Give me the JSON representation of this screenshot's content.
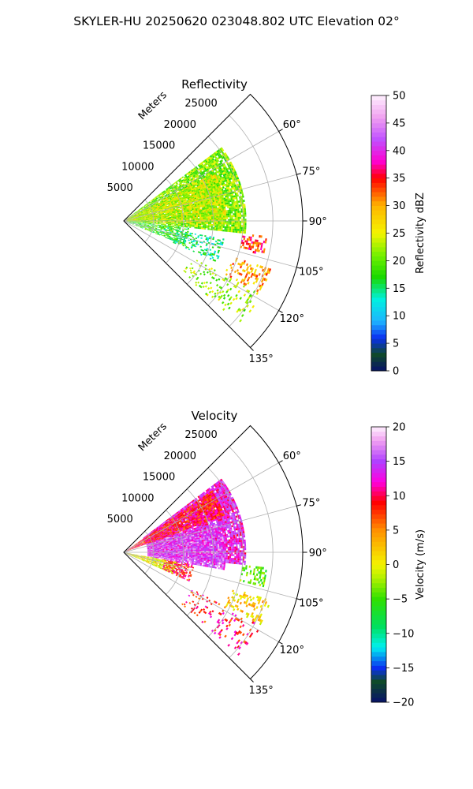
{
  "figure": {
    "suptitle": "SKYLER-HU  20250620  023048.802 UTC Elevation 02°"
  },
  "chart_data": [
    {
      "type": "heatmap",
      "projection": "polar-sector",
      "title": "Reflectivity",
      "range_label": "Meters",
      "range_ticks": [
        5000,
        10000,
        15000,
        20000,
        25000
      ],
      "range_max": 30000,
      "azimuth_range_deg": [
        45,
        135
      ],
      "azimuth_ticks": [
        60,
        75,
        90,
        105,
        120,
        135
      ],
      "azimuth_tick_labels": [
        "60°",
        "75°",
        "90°",
        "105°",
        "120°",
        "135°"
      ],
      "grid": true,
      "colorbar": {
        "label": "Reflectivity dBZ",
        "min": 0,
        "max": 50,
        "ticks": [
          0,
          5,
          10,
          15,
          20,
          25,
          30,
          35,
          40,
          45,
          50
        ],
        "tick_labels": [
          "0",
          "5",
          "10",
          "15",
          "20",
          "25",
          "30",
          "35",
          "40",
          "45",
          "50"
        ],
        "stops": [
          {
            "v": 0,
            "c": "#08126a"
          },
          {
            "v": 3,
            "c": "#0f4a2a"
          },
          {
            "v": 6,
            "c": "#0a2ff0"
          },
          {
            "v": 9,
            "c": "#1eb4ff"
          },
          {
            "v": 13,
            "c": "#00f0e0"
          },
          {
            "v": 17,
            "c": "#18d800"
          },
          {
            "v": 21,
            "c": "#74f000"
          },
          {
            "v": 25,
            "c": "#f4f400"
          },
          {
            "v": 30,
            "c": "#ffb400"
          },
          {
            "v": 35,
            "c": "#ff0000"
          },
          {
            "v": 38,
            "c": "#ff00d0"
          },
          {
            "v": 42,
            "c": "#c050ff"
          },
          {
            "v": 46,
            "c": "#f0a0f0"
          },
          {
            "v": 50,
            "c": "#fff0ff"
          }
        ]
      },
      "echo_regions": [
        {
          "az": [
            53,
            96
          ],
          "range": [
            0,
            20500
          ],
          "value": 21,
          "density": 0.88
        },
        {
          "az": [
            62,
            92
          ],
          "range": [
            0,
            17000
          ],
          "value": 24,
          "density": 0.75
        },
        {
          "az": [
            96,
            112
          ],
          "range": [
            0,
            11000
          ],
          "value": 18,
          "density": 0.65
        },
        {
          "az": [
            100,
            114
          ],
          "range": [
            9000,
            17000
          ],
          "value": 15,
          "density": 0.35
        },
        {
          "az": [
            96,
            104
          ],
          "range": [
            20000,
            24000
          ],
          "value": 34,
          "density": 0.45
        },
        {
          "az": [
            108,
            118
          ],
          "range": [
            19000,
            26000
          ],
          "value": 30,
          "density": 0.3
        },
        {
          "az": [
            118,
            132
          ],
          "range": [
            13000,
            26000
          ],
          "value": 22,
          "density": 0.18
        }
      ]
    },
    {
      "type": "heatmap",
      "projection": "polar-sector",
      "title": "Velocity",
      "range_label": "Meters",
      "range_ticks": [
        5000,
        10000,
        15000,
        20000,
        25000
      ],
      "range_max": 30000,
      "azimuth_range_deg": [
        45,
        135
      ],
      "azimuth_ticks": [
        60,
        75,
        90,
        105,
        120,
        135
      ],
      "azimuth_tick_labels": [
        "60°",
        "75°",
        "90°",
        "105°",
        "120°",
        "135°"
      ],
      "grid": true,
      "colorbar": {
        "label": "Velocity (m/s)",
        "min": -20,
        "max": 20,
        "ticks": [
          -20,
          -15,
          -10,
          -5,
          0,
          5,
          10,
          15,
          20
        ],
        "tick_labels": [
          "−20",
          "−15",
          "−10",
          "−5",
          "0",
          "5",
          "10",
          "15",
          "20"
        ],
        "stops": [
          {
            "v": -20,
            "c": "#08126a"
          },
          {
            "v": -17,
            "c": "#0f4a2a"
          },
          {
            "v": -15,
            "c": "#0a2ff0"
          },
          {
            "v": -12,
            "c": "#00f0f0"
          },
          {
            "v": -9,
            "c": "#00e060"
          },
          {
            "v": -5,
            "c": "#30e000"
          },
          {
            "v": -2,
            "c": "#b0f000"
          },
          {
            "v": 0,
            "c": "#f4f400"
          },
          {
            "v": 5,
            "c": "#ff9000"
          },
          {
            "v": 9,
            "c": "#ff0000"
          },
          {
            "v": 12,
            "c": "#ff00e0"
          },
          {
            "v": 15,
            "c": "#b040ff"
          },
          {
            "v": 18,
            "c": "#f0a0f0"
          },
          {
            "v": 20,
            "c": "#fff0ff"
          }
        ]
      },
      "echo_regions": [
        {
          "az": [
            53,
            96
          ],
          "range": [
            4000,
            20500
          ],
          "value": 13,
          "density": 0.9
        },
        {
          "az": [
            55,
            70
          ],
          "range": [
            0,
            18000
          ],
          "value": 9,
          "density": 0.9
        },
        {
          "az": [
            72,
            100
          ],
          "range": [
            4000,
            17000
          ],
          "value": 15,
          "density": 0.9
        },
        {
          "az": [
            100,
            114
          ],
          "range": [
            0,
            9000
          ],
          "value": 0,
          "density": 0.8
        },
        {
          "az": [
            100,
            114
          ],
          "range": [
            7000,
            12000
          ],
          "value": 9,
          "density": 0.6
        },
        {
          "az": [
            96,
            104
          ],
          "range": [
            20000,
            24000
          ],
          "value": -4,
          "density": 0.45
        },
        {
          "az": [
            108,
            118
          ],
          "range": [
            19000,
            26000
          ],
          "value": 2,
          "density": 0.3
        },
        {
          "az": [
            118,
            132
          ],
          "range": [
            13000,
            26000
          ],
          "value": 9,
          "density": 0.18
        }
      ]
    }
  ]
}
